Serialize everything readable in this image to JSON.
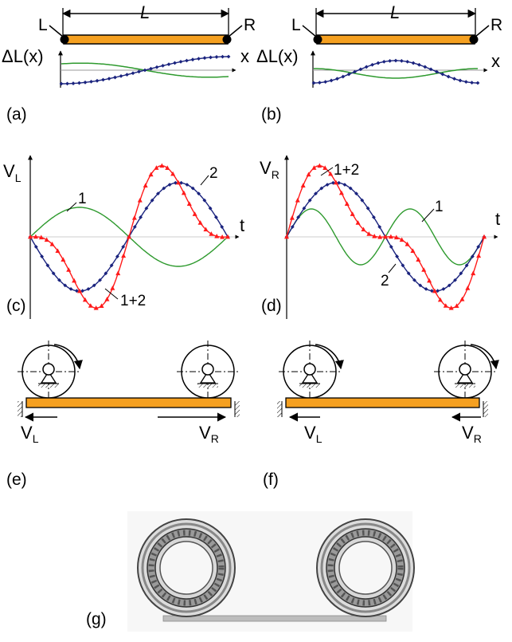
{
  "panels": {
    "a": "(a)",
    "b": "(b)",
    "c": "(c)",
    "d": "(d)",
    "e": "(e)",
    "f": "(f)",
    "g": "(g)"
  },
  "rod": {
    "length_label": "L",
    "left_end": "L",
    "right_end": "R",
    "color": "#F5A020"
  },
  "deformation": {
    "ylabel": "ΔL(x)",
    "xlabel": "x"
  },
  "velocity": {
    "left_ylabel": "V",
    "left_sub": "L",
    "right_ylabel": "V",
    "right_sub": "R",
    "tlabel": "t",
    "curve1": "1",
    "curve2": "2",
    "curve12": "1+2"
  },
  "rollers": {
    "vl": "V",
    "vl_sub": "L",
    "vr": "V",
    "vr_sub": "R"
  },
  "colors": {
    "green": "#2E9A2E",
    "blue": "#1A237E",
    "red": "#FF1A1A",
    "orange": "#F5A020"
  }
}
